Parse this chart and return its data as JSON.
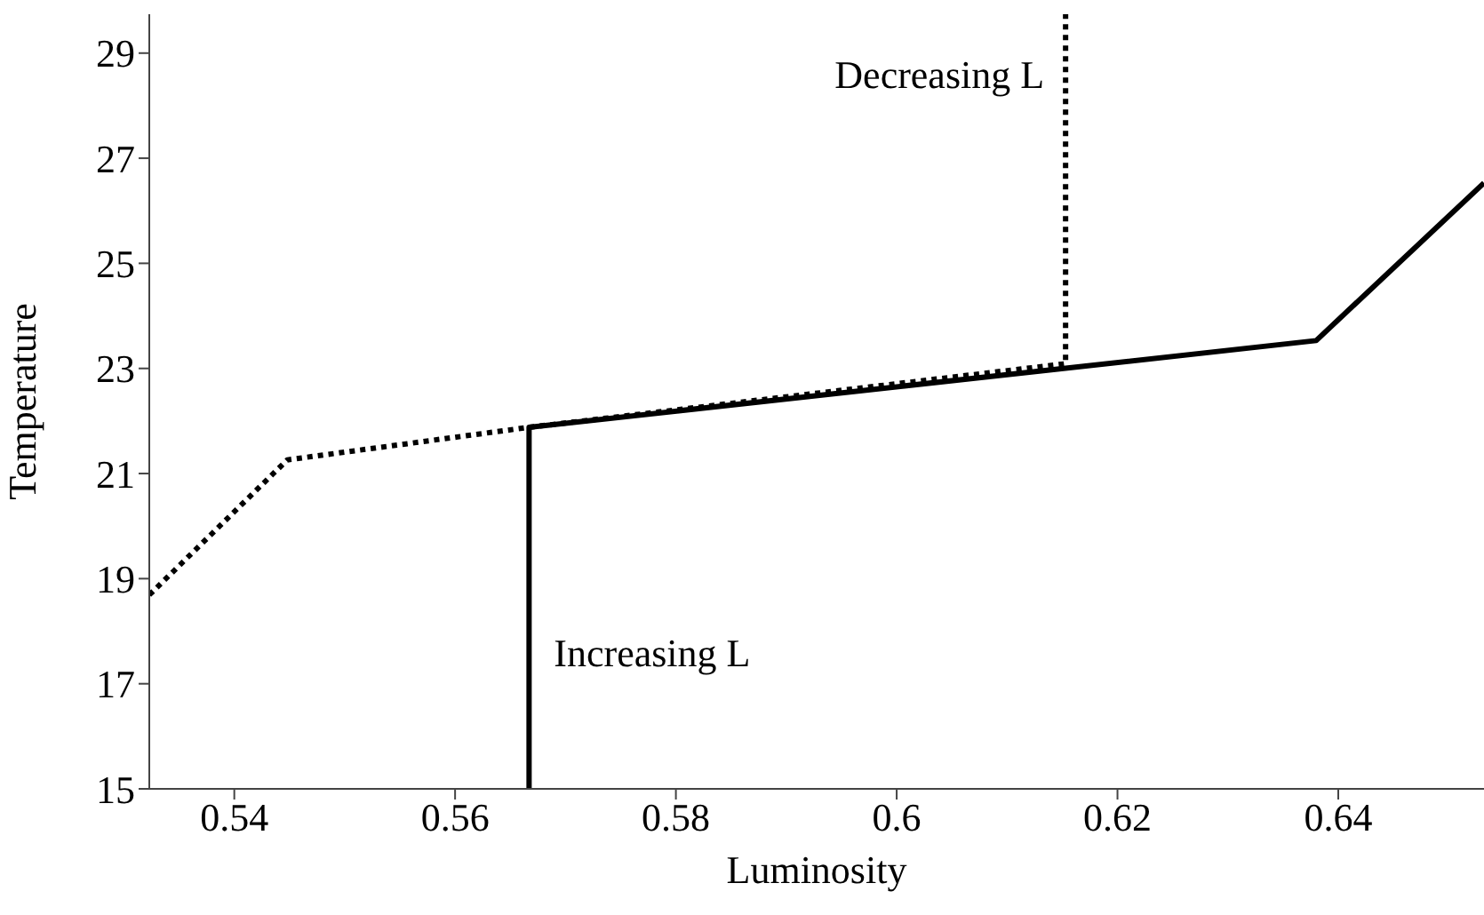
{
  "chart_data": {
    "type": "line",
    "xlabel": "Luminosity",
    "ylabel": "Temperature",
    "xlim": [
      0.5323,
      0.6532
    ],
    "xticks": [
      0.54,
      0.56,
      0.58,
      0.6,
      0.62,
      0.64
    ],
    "ylim": [
      15,
      29.74
    ],
    "yticks": [
      15,
      17,
      19,
      21,
      23,
      25,
      27,
      29
    ],
    "marker": "none",
    "series": [
      {
        "color": "#000000",
        "line_style": "dotted",
        "x": [
          0.5323,
          0.5448,
          0.5667,
          0.6153,
          0.6153
        ],
        "values": [
          18.69,
          21.26,
          21.88,
          23.09,
          29.74
        ]
      },
      {
        "color": "#000000",
        "line_style": "solid",
        "x": [
          0.5667,
          0.5667,
          0.638,
          0.6532
        ],
        "values": [
          15,
          21.88,
          23.53,
          26.53
        ]
      }
    ],
    "annotations": [
      {
        "text": "Decreasing L",
        "x": 0.6153,
        "y": 28.5
      },
      {
        "text": "Increasing L",
        "x": 0.5667,
        "y": 17.5
      }
    ]
  }
}
